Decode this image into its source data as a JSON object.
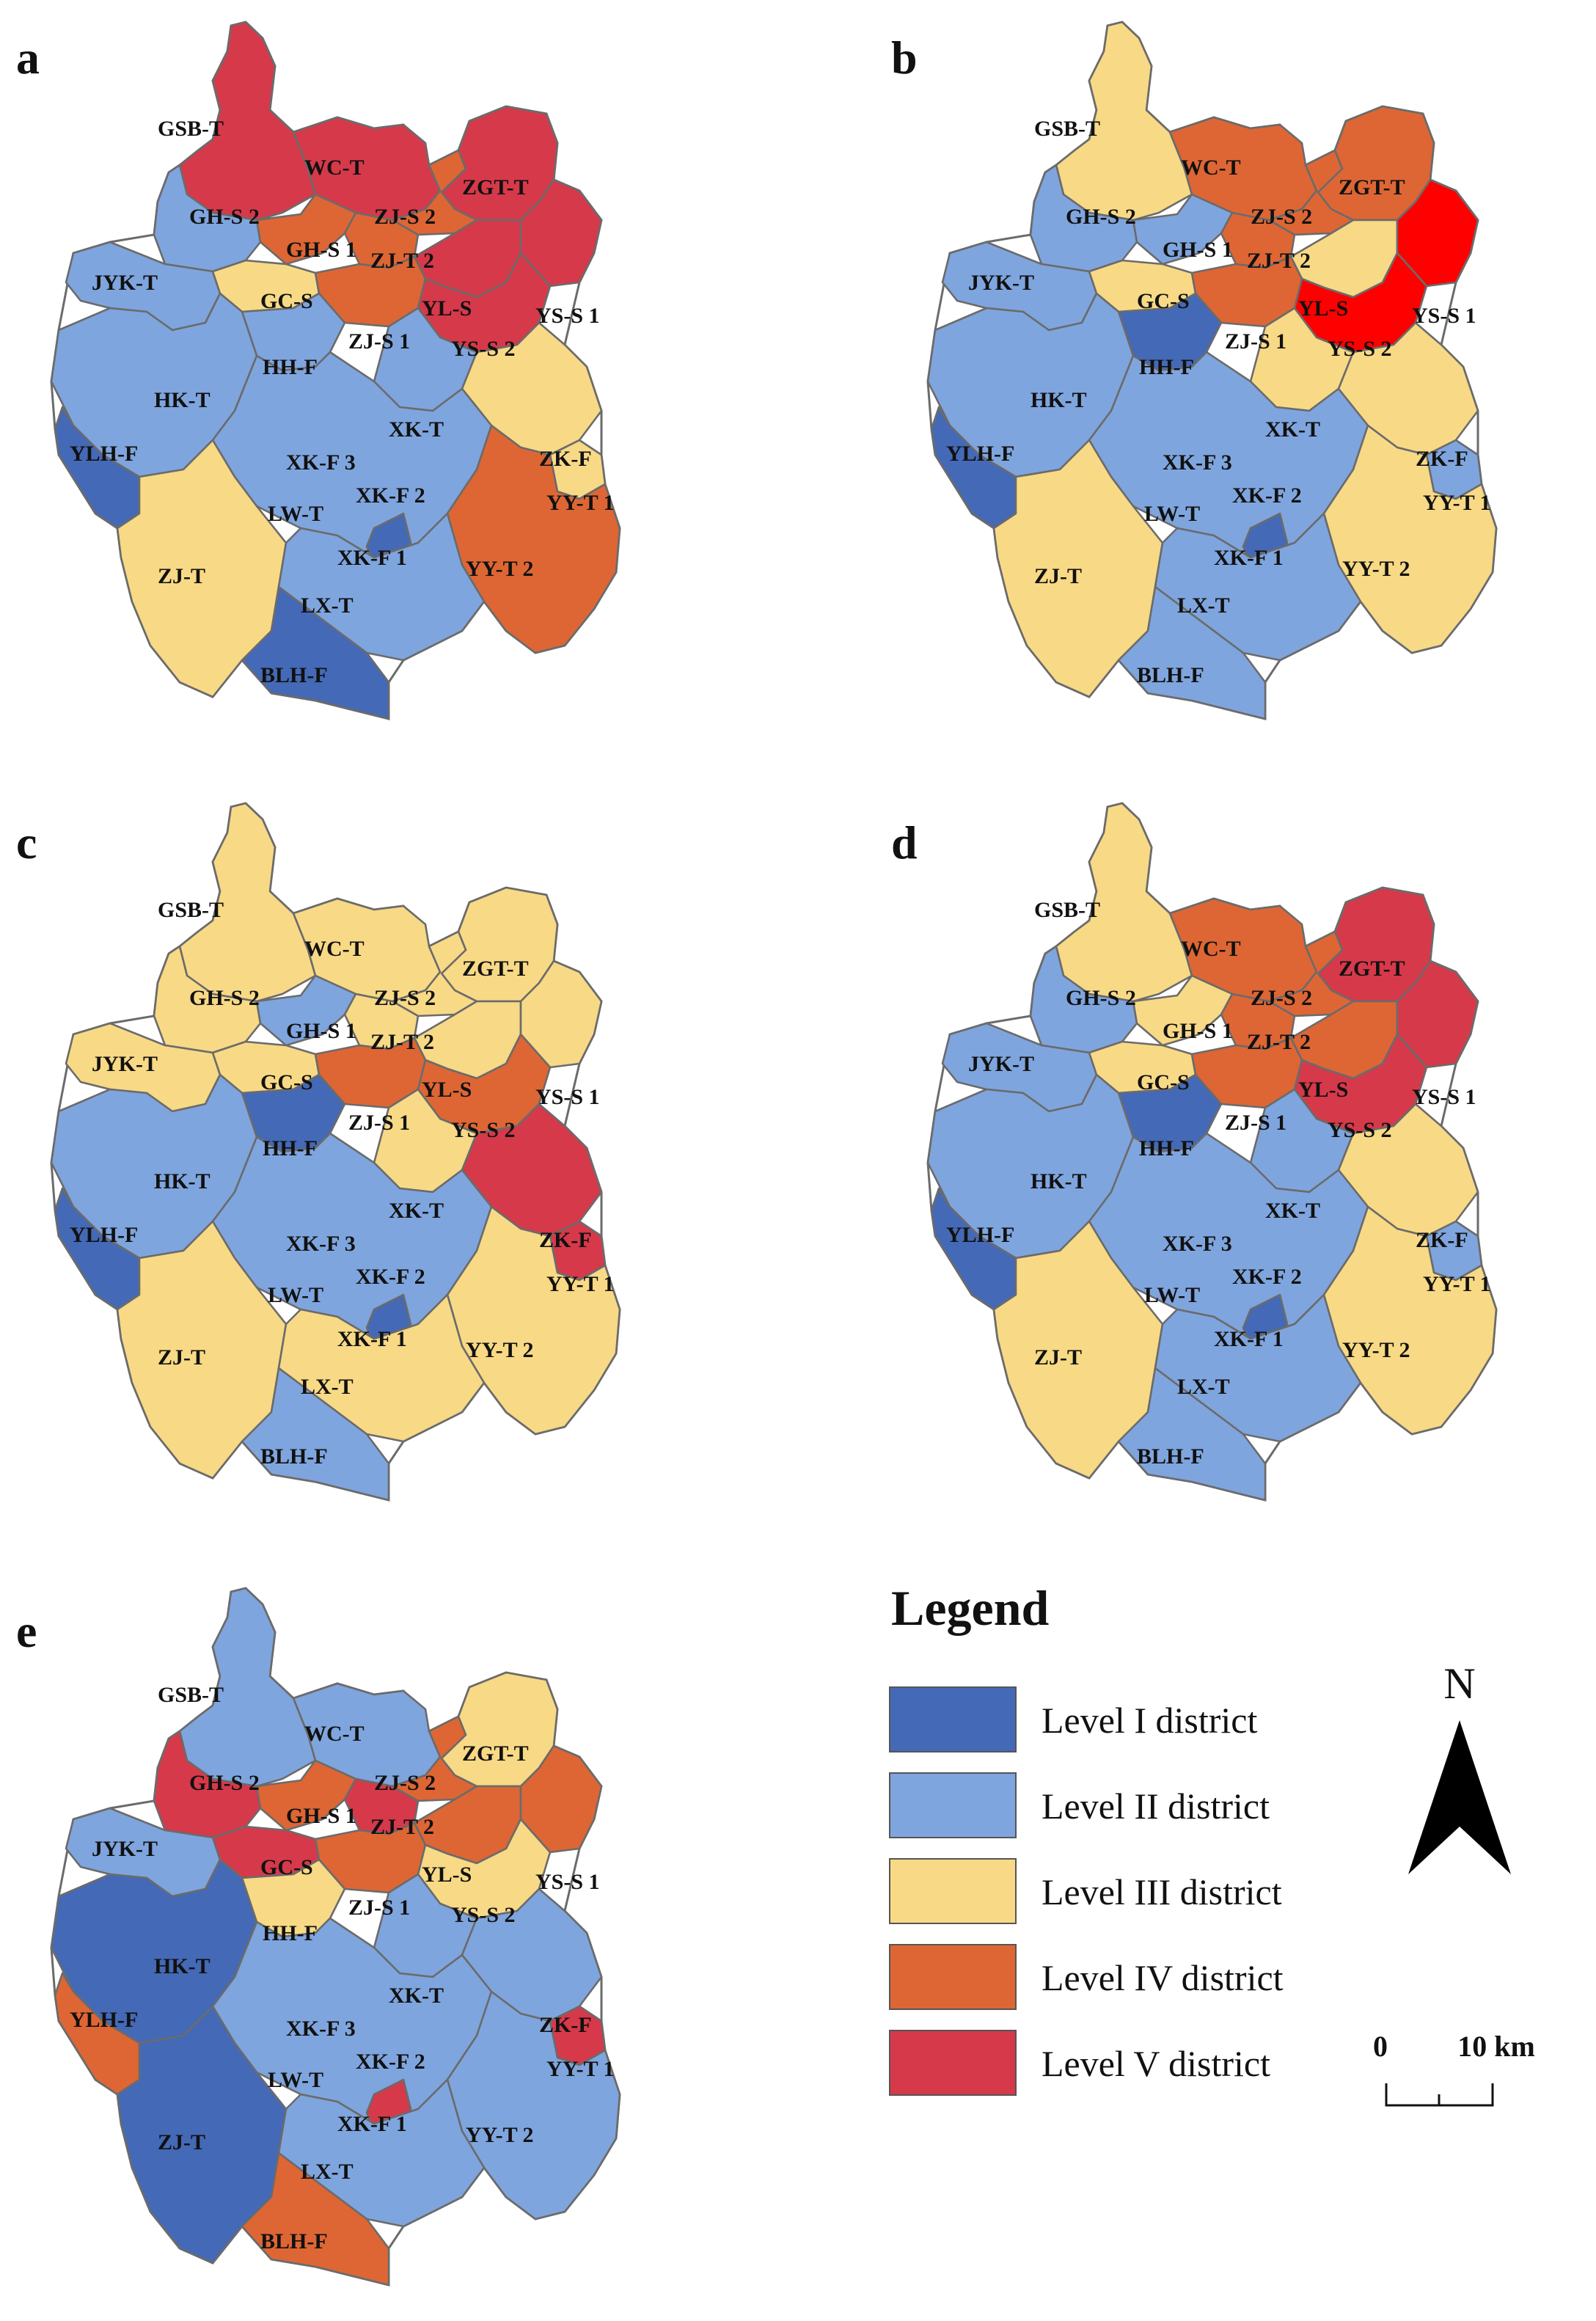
{
  "colors": {
    "1": "#4469b6",
    "2": "#7fa5de",
    "3": "#f8d985",
    "4": "#de6634",
    "5": "#d6394a",
    "5b": "#ff0000"
  },
  "districts": [
    "GSB-T",
    "WC-T",
    "ZGT-T",
    "GH-S 2",
    "ZJ-S 2",
    "GH-S 1",
    "ZJ-T 2",
    "JYK-T",
    "GC-S",
    "YL-S",
    "YS-S 1",
    "ZJ-S 1",
    "YS-S 2",
    "HH-F",
    "HK-T",
    "XK-T",
    "YLH-F",
    "ZK-F",
    "XK-F 3",
    "XK-F 2",
    "YY-T 1",
    "LW-T",
    "XK-F 1",
    "YY-T 2",
    "ZJ-T",
    "LX-T",
    "BLH-F"
  ],
  "panels": [
    {
      "letter": "a",
      "levels": {
        "GSB-T": "5",
        "WC-T": "5",
        "ZGT-T": "5",
        "GH-S 2": "2",
        "ZJ-S 2": "4",
        "GH-S 1": "4",
        "ZJ-T 2": "4",
        "JYK-T": "2",
        "GC-S": "3",
        "YL-S": "5",
        "YS-S 1": "5",
        "ZJ-S 1": "4",
        "YS-S 2": "5",
        "HH-F": "2",
        "HK-T": "2",
        "XK-T": "2",
        "YLH-F": "1",
        "ZK-F": "3",
        "XK-F 3": "1",
        "XK-F 2": "2",
        "YY-T 1": "3",
        "LW-T": "2",
        "XK-F 1": "1",
        "YY-T 2": "4",
        "ZJ-T": "3",
        "LX-T": "2",
        "BLH-F": "1"
      }
    },
    {
      "letter": "b",
      "levels": {
        "GSB-T": "3",
        "WC-T": "4",
        "ZGT-T": "4",
        "GH-S 2": "2",
        "ZJ-S 2": "4",
        "GH-S 1": "2",
        "ZJ-T 2": "4",
        "JYK-T": "2",
        "GC-S": "3",
        "YL-S": "3",
        "YS-S 1": "5b",
        "ZJ-S 1": "4",
        "YS-S 2": "5b",
        "HH-F": "1",
        "HK-T": "2",
        "XK-T": "3",
        "YLH-F": "1",
        "ZK-F": "3",
        "XK-F 3": "1",
        "XK-F 2": "1",
        "YY-T 1": "2",
        "LW-T": "2",
        "XK-F 1": "1",
        "YY-T 2": "3",
        "ZJ-T": "3",
        "LX-T": "2",
        "BLH-F": "2"
      }
    },
    {
      "letter": "c",
      "levels": {
        "GSB-T": "3",
        "WC-T": "3",
        "ZGT-T": "3",
        "GH-S 2": "3",
        "ZJ-S 2": "3",
        "GH-S 1": "2",
        "ZJ-T 2": "3",
        "JYK-T": "3",
        "GC-S": "3",
        "YL-S": "3",
        "YS-S 1": "3",
        "ZJ-S 1": "4",
        "YS-S 2": "4",
        "HH-F": "1",
        "HK-T": "2",
        "XK-T": "3",
        "YLH-F": "1",
        "ZK-F": "5",
        "XK-F 3": "2",
        "XK-F 2": "2",
        "YY-T 1": "5",
        "LW-T": "2",
        "XK-F 1": "1",
        "YY-T 2": "3",
        "ZJ-T": "3",
        "LX-T": "3",
        "BLH-F": "2"
      }
    },
    {
      "letter": "d",
      "levels": {
        "GSB-T": "3",
        "WC-T": "4",
        "ZGT-T": "5",
        "GH-S 2": "2",
        "ZJ-S 2": "4",
        "GH-S 1": "3",
        "ZJ-T 2": "4",
        "JYK-T": "2",
        "GC-S": "3",
        "YL-S": "4",
        "YS-S 1": "5",
        "ZJ-S 1": "4",
        "YS-S 2": "5",
        "HH-F": "1",
        "HK-T": "2",
        "XK-T": "2",
        "YLH-F": "1",
        "ZK-F": "3",
        "XK-F 3": "1",
        "XK-F 2": "1",
        "YY-T 1": "2",
        "LW-T": "2",
        "XK-F 1": "1",
        "YY-T 2": "3",
        "ZJ-T": "3",
        "LX-T": "2",
        "BLH-F": "2"
      }
    },
    {
      "letter": "e",
      "levels": {
        "GSB-T": "2",
        "WC-T": "2",
        "ZGT-T": "3",
        "GH-S 2": "5",
        "ZJ-S 2": "4",
        "GH-S 1": "4",
        "ZJ-T 2": "5",
        "JYK-T": "2",
        "GC-S": "5",
        "YL-S": "4",
        "YS-S 1": "4",
        "ZJ-S 1": "4",
        "YS-S 2": "3",
        "HH-F": "3",
        "HK-T": "1",
        "XK-T": "2",
        "YLH-F": "4",
        "ZK-F": "2",
        "XK-F 3": "5",
        "XK-F 2": "5",
        "YY-T 1": "5",
        "LW-T": "2",
        "XK-F 1": "5",
        "YY-T 2": "2",
        "ZJ-T": "1",
        "LX-T": "2",
        "BLH-F": "4"
      }
    }
  ],
  "legend": {
    "title": "Legend",
    "items": [
      {
        "label": "Level I district",
        "color": "#4469b6"
      },
      {
        "label": "Level II district",
        "color": "#7fa5de"
      },
      {
        "label": "Level III district",
        "color": "#f8d985"
      },
      {
        "label": "Level IV district",
        "color": "#de6634"
      },
      {
        "label": "Level V district",
        "color": "#d6394a"
      }
    ]
  },
  "north_arrow": {
    "letter": "N"
  },
  "scale_bar": {
    "start": "0",
    "end": "10 km"
  }
}
